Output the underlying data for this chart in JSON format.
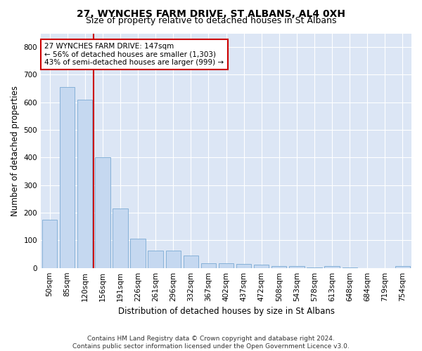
{
  "title": "27, WYNCHES FARM DRIVE, ST ALBANS, AL4 0XH",
  "subtitle": "Size of property relative to detached houses in St Albans",
  "xlabel": "Distribution of detached houses by size in St Albans",
  "ylabel": "Number of detached properties",
  "footer_line1": "Contains HM Land Registry data © Crown copyright and database right 2024.",
  "footer_line2": "Contains public sector information licensed under the Open Government Licence v3.0.",
  "bar_labels": [
    "50sqm",
    "85sqm",
    "120sqm",
    "156sqm",
    "191sqm",
    "226sqm",
    "261sqm",
    "296sqm",
    "332sqm",
    "367sqm",
    "402sqm",
    "437sqm",
    "472sqm",
    "508sqm",
    "543sqm",
    "578sqm",
    "613sqm",
    "648sqm",
    "684sqm",
    "719sqm",
    "754sqm"
  ],
  "bar_values": [
    175,
    655,
    610,
    400,
    215,
    107,
    63,
    63,
    44,
    17,
    16,
    14,
    12,
    7,
    8,
    2,
    8,
    1,
    0,
    0,
    6
  ],
  "bar_color": "#c5d8f0",
  "bar_edge_color": "#7aaad4",
  "vline_color": "#cc0000",
  "annotation_text": "27 WYNCHES FARM DRIVE: 147sqm\n← 56% of detached houses are smaller (1,303)\n43% of semi-detached houses are larger (999) →",
  "annotation_box_color": "#ffffff",
  "annotation_box_edge": "#cc0000",
  "annotation_fontsize": 7.5,
  "ylim": [
    0,
    850
  ],
  "yticks": [
    0,
    100,
    200,
    300,
    400,
    500,
    600,
    700,
    800
  ],
  "background_color": "#dce6f5",
  "grid_color": "#ffffff",
  "fig_background": "#ffffff",
  "title_fontsize": 10,
  "subtitle_fontsize": 9,
  "xlabel_fontsize": 8.5,
  "ylabel_fontsize": 8.5,
  "tick_fontsize": 7.5,
  "footer_fontsize": 6.5
}
